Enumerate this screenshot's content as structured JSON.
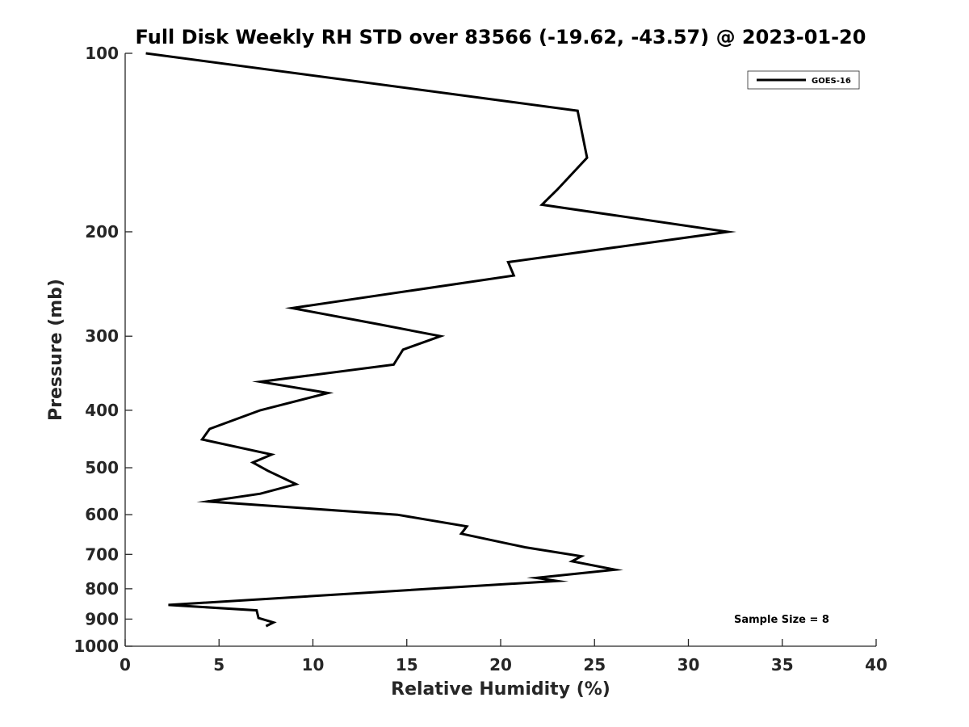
{
  "chart_data": {
    "type": "line",
    "title": "Full Disk Weekly RH STD over 83566 (-19.62, -43.57) @ 2023-01-20",
    "xlabel": "Relative Humidity (%)",
    "ylabel": "Pressure (mb)",
    "xlim": [
      0,
      40
    ],
    "ylim": [
      100,
      1000
    ],
    "yscale": "log",
    "y_reversed": true,
    "grid": false,
    "x_ticks": [
      0,
      5,
      10,
      15,
      20,
      25,
      30,
      35,
      40
    ],
    "x_tick_labels": [
      "0",
      "5",
      "10",
      "15",
      "20",
      "25",
      "30",
      "35",
      "40"
    ],
    "y_ticks": [
      100,
      200,
      300,
      400,
      500,
      600,
      700,
      800,
      900,
      1000
    ],
    "y_tick_labels": [
      "100",
      "200",
      "300",
      "400",
      "500",
      "600",
      "700",
      "800",
      "900",
      "1000"
    ],
    "legend_position": "top-right",
    "series": [
      {
        "name": "GOES-16",
        "color": "#000000",
        "points": [
          [
            1.1,
            100
          ],
          [
            24.1,
            125
          ],
          [
            24.6,
            150
          ],
          [
            23.0,
            170
          ],
          [
            22.2,
            180
          ],
          [
            32.1,
            200
          ],
          [
            20.4,
            225
          ],
          [
            20.7,
            237
          ],
          [
            8.9,
            269
          ],
          [
            13.4,
            286
          ],
          [
            16.8,
            300
          ],
          [
            14.8,
            316
          ],
          [
            14.3,
            335
          ],
          [
            7.2,
            358
          ],
          [
            10.8,
            374
          ],
          [
            7.2,
            400
          ],
          [
            4.5,
            430
          ],
          [
            4.1,
            448
          ],
          [
            7.8,
            475
          ],
          [
            6.8,
            490
          ],
          [
            7.6,
            506
          ],
          [
            9.1,
            533
          ],
          [
            7.2,
            553
          ],
          [
            4.4,
            570
          ],
          [
            14.5,
            600
          ],
          [
            18.2,
            628
          ],
          [
            17.9,
            646
          ],
          [
            21.3,
            681
          ],
          [
            24.3,
            705
          ],
          [
            23.8,
            719
          ],
          [
            26.1,
            743
          ],
          [
            21.9,
            767
          ],
          [
            23.0,
            776
          ],
          [
            2.3,
            852
          ],
          [
            7.0,
            870
          ],
          [
            7.1,
            896
          ],
          [
            7.9,
            912
          ],
          [
            7.5,
            925
          ]
        ]
      }
    ],
    "annotation": "Sample Size = 8"
  }
}
